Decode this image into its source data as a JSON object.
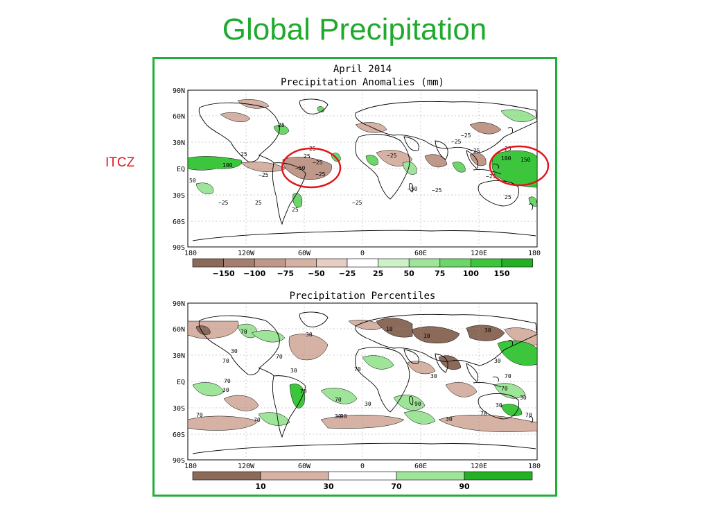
{
  "slide": {
    "title": "Global Precipitation",
    "annotation": "ITCZ"
  },
  "colors": {
    "title": "#1faa2e",
    "annotation": "#e0161b",
    "frame": "#1fb03a",
    "circle": "#e0161b"
  },
  "top_map": {
    "title_line1": "April 2014",
    "title_line2": "Precipitation Anomalies (mm)",
    "lat_labels": [
      "90N",
      "60N",
      "30N",
      "EQ",
      "30S",
      "60S",
      "90S"
    ],
    "lon_labels": [
      "180",
      "120W",
      "60W",
      "0",
      "60E",
      "120E",
      "180"
    ],
    "legend_labels": [
      "−150",
      "−100",
      "−75",
      "−50",
      "−25",
      "25",
      "50",
      "75",
      "100",
      "150"
    ],
    "legend_colors": [
      "#8b6a5a",
      "#a57e6f",
      "#bf9889",
      "#d5b2a4",
      "#e7cdc3",
      "#ffffff",
      "#cdf2c8",
      "#9ee59a",
      "#6cd66a",
      "#3cc63c",
      "#24b024"
    ],
    "contour_labels": [
      "25",
      "25",
      "25",
      "25",
      "−25",
      "−50",
      "−25",
      "−25",
      "50",
      "100",
      "−25",
      "25",
      "−25",
      "25",
      "−25",
      "−50",
      "−25",
      "−25",
      "−25",
      "100",
      "150",
      "25",
      "25",
      "−25",
      "−25"
    ]
  },
  "bottom_map": {
    "title": "Precipitation Percentiles",
    "lat_labels": [
      "90N",
      "60N",
      "30N",
      "EQ",
      "30S",
      "60S",
      "90S"
    ],
    "lon_labels": [
      "180",
      "120W",
      "60W",
      "0",
      "60E",
      "120E",
      "180"
    ],
    "legend_labels": [
      "10",
      "30",
      "70",
      "90"
    ],
    "legend_colors": [
      "#8b6a5a",
      "#d5b2a4",
      "#ffffff",
      "#9ee59a",
      "#24b024"
    ],
    "contour_labels": [
      "70",
      "30",
      "70",
      "30",
      "70",
      "30",
      "70",
      "30",
      "10",
      "10",
      "30",
      "70",
      "30",
      "30",
      "70",
      "70",
      "70",
      "90",
      "30",
      "70",
      "30",
      "70",
      "30",
      "90",
      "70",
      "30",
      "70",
      "30",
      "70"
    ]
  }
}
